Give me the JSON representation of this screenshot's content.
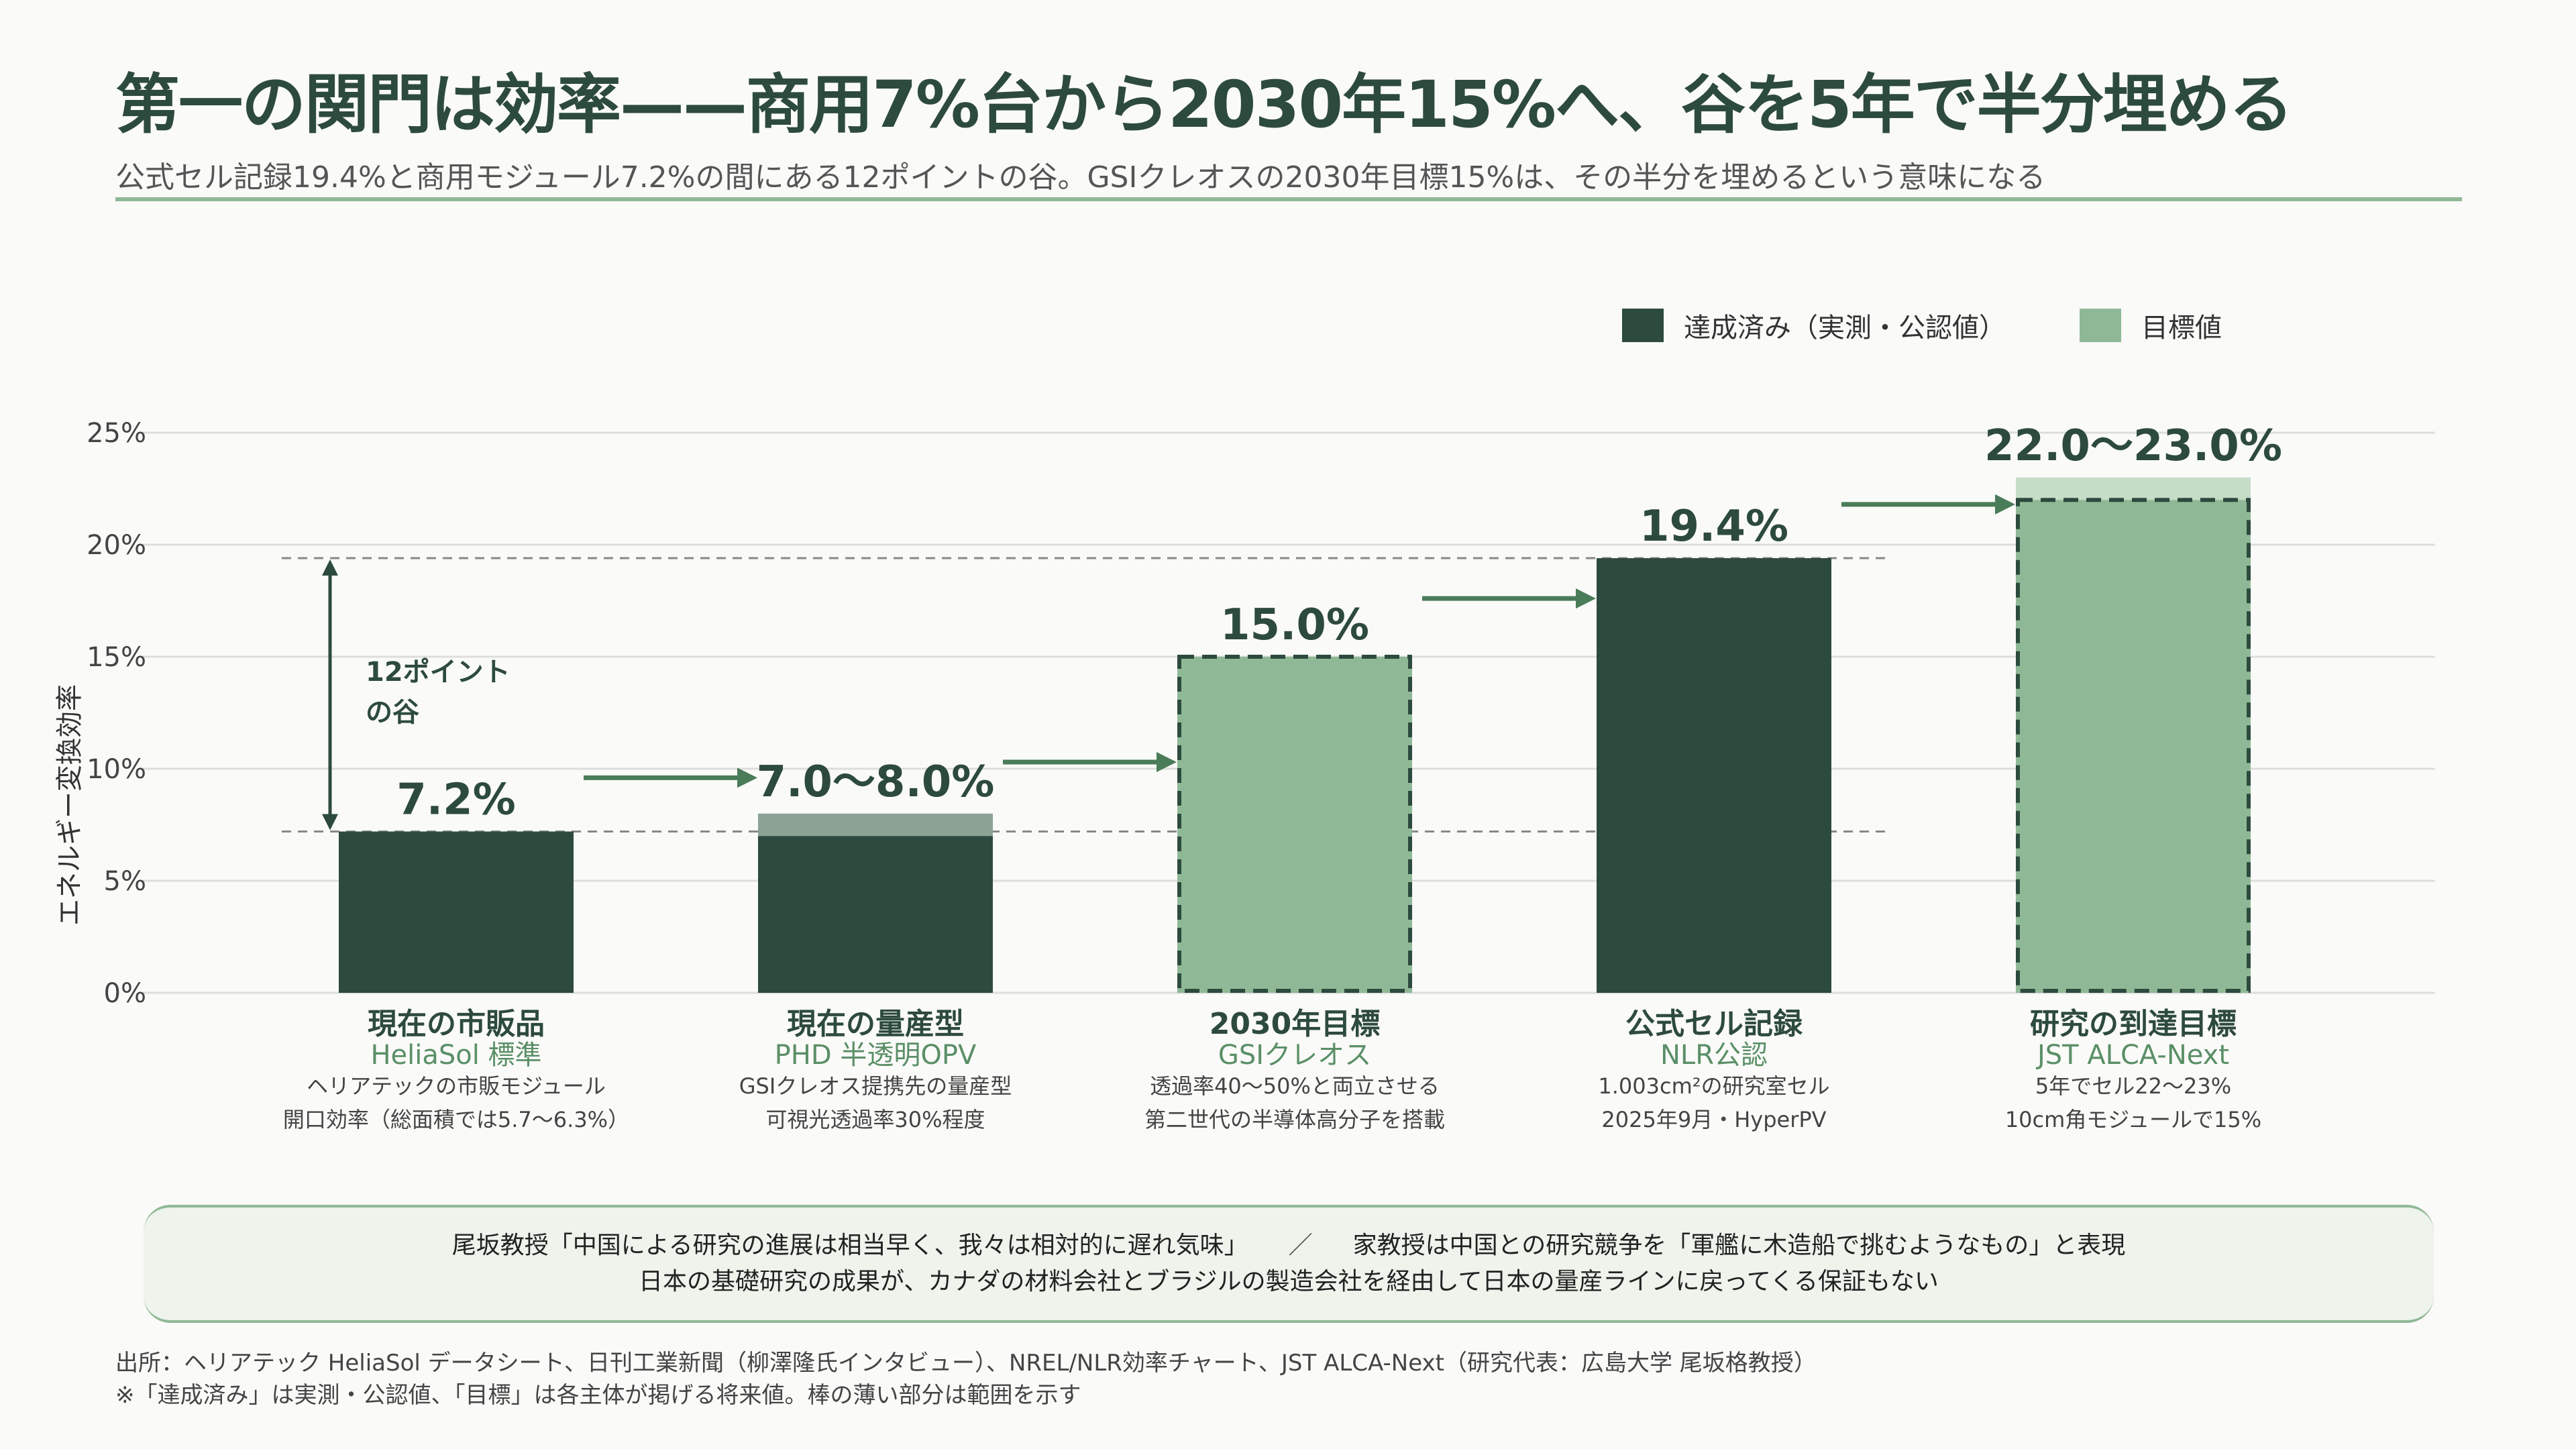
{
  "header": {
    "title": "第一の関門は効率——商用7%台から2030年15%へ、谷を5年で半分埋める",
    "subtitle": "公式セル記録19.4%と商用モジュール7.2%の間にある12ポイントの谷。GSIクレオスの2030年目標15%は、その半分を埋めるという意味になる"
  },
  "legend": {
    "achieved": "達成済み（実測・公認値）",
    "target": "目標値"
  },
  "colors": {
    "achieved": "#2d4a3e",
    "target": "#8fb996",
    "range_achieved": "#8aa394",
    "range_target": "#c5dcc6",
    "accent": "#4a7c59"
  },
  "chart_data": {
    "type": "bar",
    "ylabel": "エネルギー変換効率",
    "ylim": [
      0,
      25
    ],
    "yticks": [
      0,
      5,
      10,
      15,
      20,
      25
    ],
    "ytick_labels": [
      "0%",
      "5%",
      "10%",
      "15%",
      "20%",
      "25%"
    ],
    "grid": true,
    "legend_position": "top-right",
    "bars": [
      {
        "category": "現在の市販品",
        "sub": "HeliaSol 標準",
        "desc1": "ヘリアテックの市販モジュール",
        "desc2": "開口効率（総面積では5.7〜6.3%）",
        "value": 7.2,
        "range_max": null,
        "kind": "achieved",
        "label": "7.2%"
      },
      {
        "category": "現在の量産型",
        "sub": "PHD 半透明OPV",
        "desc1": "GSIクレオス提携先の量産型",
        "desc2": "可視光透過率30%程度",
        "value": 7.0,
        "range_max": 8.0,
        "kind": "achieved",
        "label": "7.0〜8.0%"
      },
      {
        "category": "2030年目標",
        "sub": "GSIクレオス",
        "desc1": "透過率40〜50%と両立させる",
        "desc2": "第二世代の半導体高分子を搭載",
        "value": 15.0,
        "range_max": null,
        "kind": "target",
        "label": "15.0%"
      },
      {
        "category": "公式セル記録",
        "sub": "NLR公認",
        "desc1": "1.003cm²の研究室セル",
        "desc2": "2025年9月・HyperPV",
        "value": 19.4,
        "range_max": null,
        "kind": "achieved",
        "label": "19.4%"
      },
      {
        "category": "研究の到達目標",
        "sub": "JST ALCA-Next",
        "desc1": "5年でセル22〜23%",
        "desc2": "10cm角モジュールで15%",
        "value": 22.0,
        "range_max": 23.0,
        "kind": "target",
        "label": "22.0〜23.0%"
      }
    ],
    "gap_annotation": {
      "line1": "12ポイント",
      "line2": "の谷",
      "from": 7.2,
      "to": 19.4
    }
  },
  "quote": {
    "line1a": "尾坂教授「中国による研究の進展は相当早く、我々は相対的に遅れ気味」",
    "separator": "／",
    "line1b": "家教授は中国との研究競争を「軍艦に木造船で挑むようなもの」と表現",
    "line2": "日本の基礎研究の成果が、カナダの材料会社とブラジルの製造会社を経由して日本の量産ラインに戻ってくる保証もない"
  },
  "sources": {
    "line1": "出所：ヘリアテック HeliaSol データシート、日刊工業新聞（柳澤隆氏インタビュー）、NREL/NLR効率チャート、JST ALCA-Next（研究代表：広島大学 尾坂格教授）",
    "line2": "※「達成済み」は実測・公認値、「目標」は各主体が掲げる将来値。棒の薄い部分は範囲を示す"
  }
}
